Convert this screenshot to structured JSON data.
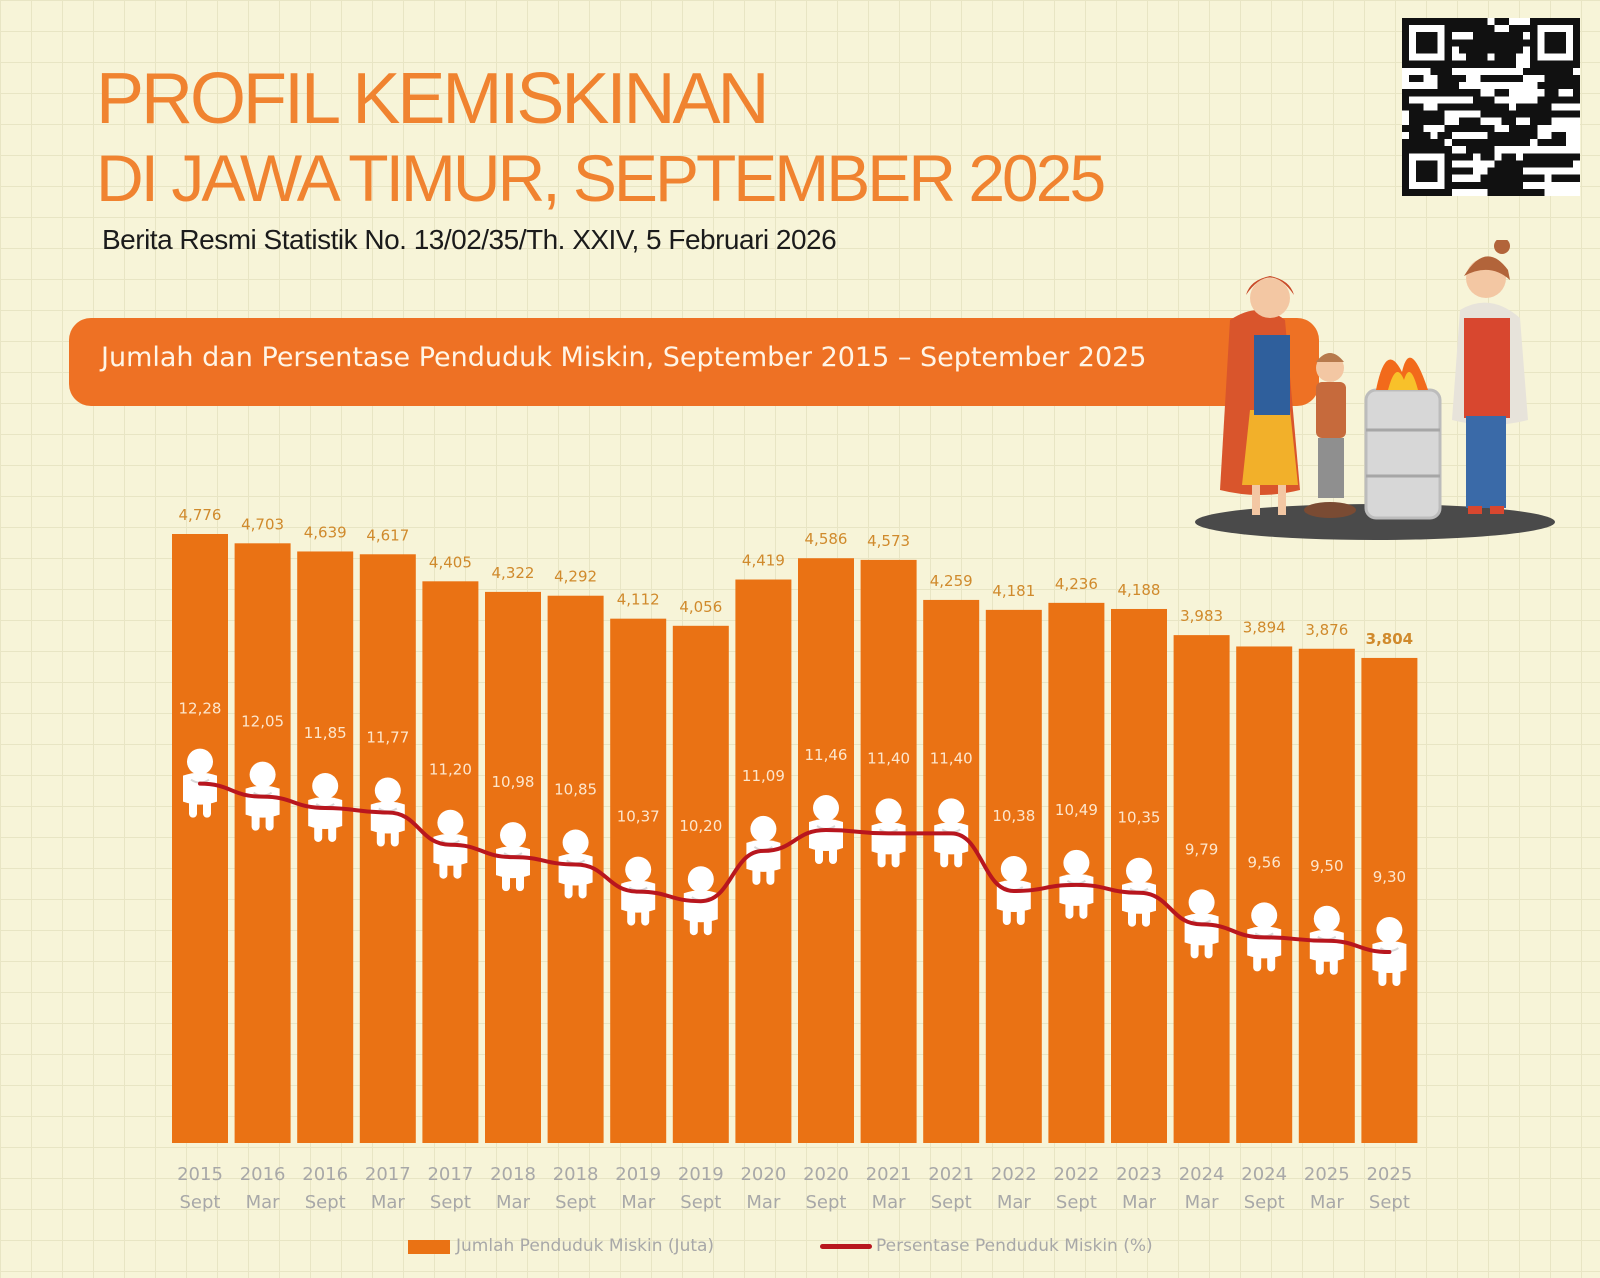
{
  "header": {
    "title_line1": "PROFIL KEMISKINAN",
    "title_line2": "DI JAWA TIMUR, SEPTEMBER 2025",
    "subtitle": "Berita Resmi Statistik No. 13/02/35/Th. XXIV, 5 Februari 2026"
  },
  "banner": {
    "text": "Jumlah dan Persentase Penduduk Miskin, September 2015 – September 2025"
  },
  "colors": {
    "accent": "#f08330",
    "bar": "#ea7214",
    "line": "#b8161e",
    "bar_label": "#d08a2c",
    "pct_label": "#fde6cc",
    "background": "#f7f4d8"
  },
  "icons": {
    "qr": "qr-code",
    "illustration": "family-warming-by-fire",
    "marker": "person-sitting-hugging-knees"
  },
  "chart_data": {
    "type": "bar",
    "categories": [
      [
        "2015",
        "Sept"
      ],
      [
        "2016",
        "Mar"
      ],
      [
        "2016",
        "Sept"
      ],
      [
        "2017",
        "Mar"
      ],
      [
        "2017",
        "Sept"
      ],
      [
        "2018",
        "Mar"
      ],
      [
        "2018",
        "Sept"
      ],
      [
        "2019",
        "Mar"
      ],
      [
        "2019",
        "Sept"
      ],
      [
        "2020",
        "Mar"
      ],
      [
        "2020",
        "Sept"
      ],
      [
        "2021",
        "Mar"
      ],
      [
        "2021",
        "Sept"
      ],
      [
        "2022",
        "Mar"
      ],
      [
        "2022",
        "Sept"
      ],
      [
        "2023",
        "Mar"
      ],
      [
        "2024",
        "Mar"
      ],
      [
        "2024",
        "Sept"
      ],
      [
        "2025",
        "Mar"
      ],
      [
        "2025",
        "Sept"
      ]
    ],
    "series": [
      {
        "name": "Jumlah Penduduk Miskin (Juta)",
        "type": "bar",
        "values": [
          4.776,
          4.703,
          4.639,
          4.617,
          4.405,
          4.322,
          4.292,
          4.112,
          4.056,
          4.419,
          4.586,
          4.573,
          4.259,
          4.181,
          4.236,
          4.188,
          3.983,
          3.894,
          3.876,
          3.804
        ],
        "labels": [
          "4,776",
          "4,703",
          "4,639",
          "4,617",
          "4,405",
          "4,322",
          "4,292",
          "4,112",
          "4,056",
          "4,419",
          "4,586",
          "4,573",
          "4,259",
          "4,181",
          "4,236",
          "4,188",
          "3,983",
          "3,894",
          "3,876",
          "3,804"
        ]
      },
      {
        "name": "Persentase Penduduk Miskin (%)",
        "type": "line",
        "values": [
          12.28,
          12.05,
          11.85,
          11.77,
          11.2,
          10.98,
          10.85,
          10.37,
          10.2,
          11.09,
          11.46,
          11.4,
          11.4,
          10.38,
          10.49,
          10.35,
          9.79,
          9.56,
          9.5,
          9.3
        ],
        "labels": [
          "12,28",
          "12,05",
          "11,85",
          "11,77",
          "11,20",
          "10,98",
          "10,85",
          "10,37",
          "10,20",
          "11,09",
          "11,46",
          "11,40",
          "11,40",
          "10,38",
          "10,49",
          "10,35",
          "9,79",
          "9,56",
          "9,50",
          "9,30"
        ]
      }
    ],
    "legend": [
      "Jumlah Penduduk Miskin (Juta)",
      "Persentase Penduduk Miskin (%)"
    ],
    "legend_position": "bottom",
    "grid": false
  }
}
